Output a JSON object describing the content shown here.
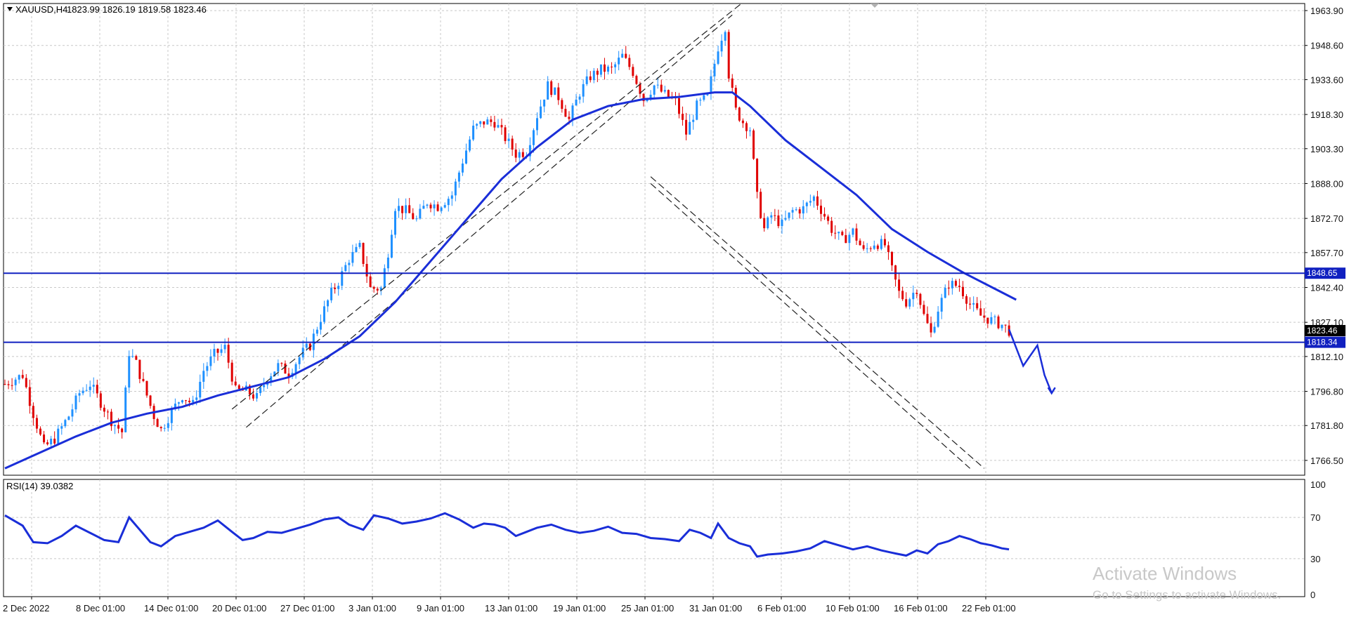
{
  "header": {
    "symbol": "XAUUSD,H4",
    "ohlc": "1823.99 1826.19 1819.58 1823.46"
  },
  "rsi_label": "RSI(14) 39.0382",
  "levels": {
    "resistance_label": "1848.65",
    "support_label": "1818.34",
    "current_label": "1823.46"
  },
  "colors": {
    "bull": "#1e90ff",
    "bear": "#e00000",
    "ma": "#1a2ed8",
    "level": "#1020c0",
    "grid": "#c8c8c8"
  },
  "watermark": {
    "line1": "Activate Windows",
    "line2": "Go to Settings to activate Windows."
  },
  "chart_data": [
    {
      "type": "candlestick",
      "title": "XAUUSD,H4",
      "x_tick_labels": [
        "2 Dec 2022",
        "8 Dec 01:00",
        "14 Dec 01:00",
        "20 Dec 01:00",
        "27 Dec 01:00",
        "3 Jan 01:00",
        "9 Jan 01:00",
        "13 Jan 01:00",
        "19 Jan 01:00",
        "25 Jan 01:00",
        "31 Jan 01:00",
        "6 Feb 01:00",
        "10 Feb 01:00",
        "16 Feb 01:00",
        "22 Feb 01:00"
      ],
      "y_tick_labels": [
        "1963.90",
        "1948.60",
        "1933.60",
        "1918.30",
        "1903.30",
        "1888.00",
        "1872.70",
        "1857.70",
        "1842.40",
        "1827.10",
        "1812.10",
        "1796.80",
        "1781.80",
        "1766.50"
      ],
      "ylim": [
        1760,
        1967
      ],
      "horizontal_levels": [
        1848.65,
        1818.34
      ],
      "last_price": 1823.46,
      "price_path": [
        [
          0,
          1800
        ],
        [
          5,
          1804
        ],
        [
          8,
          1787
        ],
        [
          11,
          1772
        ],
        [
          14,
          1776
        ],
        [
          18,
          1786
        ],
        [
          21,
          1796
        ],
        [
          24,
          1800
        ],
        [
          27,
          1792
        ],
        [
          30,
          1784
        ],
        [
          33,
          1779
        ],
        [
          35,
          1814
        ],
        [
          37,
          1809
        ],
        [
          40,
          1795
        ],
        [
          42,
          1786
        ],
        [
          44,
          1780
        ],
        [
          47,
          1788
        ],
        [
          50,
          1795
        ],
        [
          53,
          1791
        ],
        [
          56,
          1806
        ],
        [
          59,
          1813
        ],
        [
          62,
          1816
        ],
        [
          65,
          1797
        ],
        [
          68,
          1797
        ],
        [
          71,
          1794
        ],
        [
          74,
          1803
        ],
        [
          77,
          1808
        ],
        [
          80,
          1805
        ],
        [
          84,
          1814
        ],
        [
          86,
          1817
        ],
        [
          89,
          1829
        ],
        [
          92,
          1840
        ],
        [
          94,
          1845
        ],
        [
          97,
          1855
        ],
        [
          100,
          1860
        ],
        [
          103,
          1842
        ],
        [
          106,
          1842
        ],
        [
          108,
          1858
        ],
        [
          110,
          1878
        ],
        [
          113,
          1876
        ],
        [
          116,
          1872
        ],
        [
          119,
          1880
        ],
        [
          122,
          1878
        ],
        [
          126,
          1883
        ],
        [
          129,
          1898
        ],
        [
          132,
          1912
        ],
        [
          135,
          1915
        ],
        [
          138,
          1915
        ],
        [
          141,
          1908
        ],
        [
          144,
          1901
        ],
        [
          147,
          1902
        ],
        [
          150,
          1918
        ],
        [
          153,
          1931
        ],
        [
          156,
          1926
        ],
        [
          159,
          1916
        ],
        [
          162,
          1928
        ],
        [
          165,
          1935
        ],
        [
          168,
          1938
        ],
        [
          171,
          1938
        ],
        [
          174,
          1944
        ],
        [
          177,
          1937
        ],
        [
          180,
          1925
        ],
        [
          183,
          1931
        ],
        [
          186,
          1927
        ],
        [
          189,
          1924
        ],
        [
          192,
          1910
        ],
        [
          195,
          1922
        ],
        [
          198,
          1926
        ],
        [
          201,
          1948
        ],
        [
          203,
          1957
        ],
        [
          204,
          1936
        ],
        [
          206,
          1920
        ],
        [
          208,
          1915
        ],
        [
          210,
          1912
        ],
        [
          212,
          1882
        ],
        [
          214,
          1868
        ],
        [
          216,
          1874
        ],
        [
          219,
          1870
        ],
        [
          222,
          1876
        ],
        [
          225,
          1877
        ],
        [
          228,
          1882
        ],
        [
          231,
          1874
        ],
        [
          233,
          1868
        ],
        [
          236,
          1863
        ],
        [
          239,
          1867
        ],
        [
          242,
          1858
        ],
        [
          245,
          1862
        ],
        [
          248,
          1861
        ],
        [
          250,
          1850
        ],
        [
          252,
          1840
        ],
        [
          254,
          1836
        ],
        [
          257,
          1842
        ],
        [
          259,
          1830
        ],
        [
          261,
          1822
        ],
        [
          263,
          1833
        ],
        [
          266,
          1844
        ],
        [
          269,
          1843
        ],
        [
          272,
          1835
        ],
        [
          275,
          1830
        ],
        [
          278,
          1828
        ],
        [
          281,
          1826
        ],
        [
          283,
          1823.46
        ]
      ],
      "ma_path": [
        [
          0,
          1763
        ],
        [
          10,
          1770
        ],
        [
          20,
          1777
        ],
        [
          30,
          1783
        ],
        [
          40,
          1787
        ],
        [
          50,
          1790
        ],
        [
          60,
          1795
        ],
        [
          70,
          1799
        ],
        [
          80,
          1803
        ],
        [
          90,
          1811
        ],
        [
          100,
          1821
        ],
        [
          110,
          1836
        ],
        [
          120,
          1854
        ],
        [
          130,
          1872
        ],
        [
          140,
          1890
        ],
        [
          150,
          1904
        ],
        [
          160,
          1916
        ],
        [
          170,
          1922
        ],
        [
          180,
          1925
        ],
        [
          190,
          1926
        ],
        [
          200,
          1928
        ],
        [
          205,
          1928
        ],
        [
          210,
          1922
        ],
        [
          220,
          1907
        ],
        [
          230,
          1895
        ],
        [
          240,
          1883
        ],
        [
          250,
          1868
        ],
        [
          260,
          1858
        ],
        [
          270,
          1849
        ],
        [
          280,
          1841
        ],
        [
          285,
          1837
        ]
      ],
      "drawn_forecast": [
        [
          283,
          1824
        ],
        [
          287,
          1808
        ],
        [
          291,
          1817
        ],
        [
          293,
          1804
        ],
        [
          295,
          1796
        ]
      ]
    },
    {
      "type": "line",
      "title": "RSI(14) 39.0382",
      "y_tick_labels": [
        "100",
        "70",
        "30",
        "0"
      ],
      "ylim": [
        0,
        100
      ],
      "rsi_path": [
        [
          0,
          72
        ],
        [
          5,
          62
        ],
        [
          8,
          46
        ],
        [
          12,
          45
        ],
        [
          16,
          52
        ],
        [
          20,
          62
        ],
        [
          24,
          55
        ],
        [
          28,
          48
        ],
        [
          32,
          46
        ],
        [
          35,
          70
        ],
        [
          38,
          58
        ],
        [
          41,
          46
        ],
        [
          44,
          42
        ],
        [
          48,
          52
        ],
        [
          52,
          56
        ],
        [
          56,
          60
        ],
        [
          60,
          67
        ],
        [
          64,
          56
        ],
        [
          67,
          48
        ],
        [
          70,
          50
        ],
        [
          74,
          56
        ],
        [
          78,
          55
        ],
        [
          82,
          59
        ],
        [
          86,
          63
        ],
        [
          90,
          68
        ],
        [
          94,
          70
        ],
        [
          97,
          63
        ],
        [
          101,
          58
        ],
        [
          104,
          72
        ],
        [
          108,
          69
        ],
        [
          112,
          64
        ],
        [
          116,
          66
        ],
        [
          120,
          69
        ],
        [
          124,
          74
        ],
        [
          128,
          68
        ],
        [
          132,
          60
        ],
        [
          135,
          64
        ],
        [
          138,
          63
        ],
        [
          141,
          60
        ],
        [
          144,
          52
        ],
        [
          147,
          56
        ],
        [
          150,
          60
        ],
        [
          154,
          63
        ],
        [
          158,
          58
        ],
        [
          162,
          55
        ],
        [
          166,
          57
        ],
        [
          170,
          61
        ],
        [
          174,
          55
        ],
        [
          178,
          54
        ],
        [
          182,
          50
        ],
        [
          186,
          49
        ],
        [
          190,
          47
        ],
        [
          193,
          58
        ],
        [
          196,
          55
        ],
        [
          199,
          50
        ],
        [
          201,
          64
        ],
        [
          204,
          50
        ],
        [
          207,
          45
        ],
        [
          210,
          42
        ],
        [
          212,
          32
        ],
        [
          215,
          34
        ],
        [
          219,
          35
        ],
        [
          223,
          37
        ],
        [
          227,
          40
        ],
        [
          231,
          47
        ],
        [
          235,
          43
        ],
        [
          239,
          39
        ],
        [
          243,
          42
        ],
        [
          247,
          38
        ],
        [
          251,
          35
        ],
        [
          254,
          33
        ],
        [
          257,
          38
        ],
        [
          260,
          35
        ],
        [
          263,
          44
        ],
        [
          266,
          47
        ],
        [
          269,
          52
        ],
        [
          272,
          49
        ],
        [
          275,
          45
        ],
        [
          278,
          43
        ],
        [
          281,
          40
        ],
        [
          283,
          39.04
        ]
      ]
    }
  ]
}
